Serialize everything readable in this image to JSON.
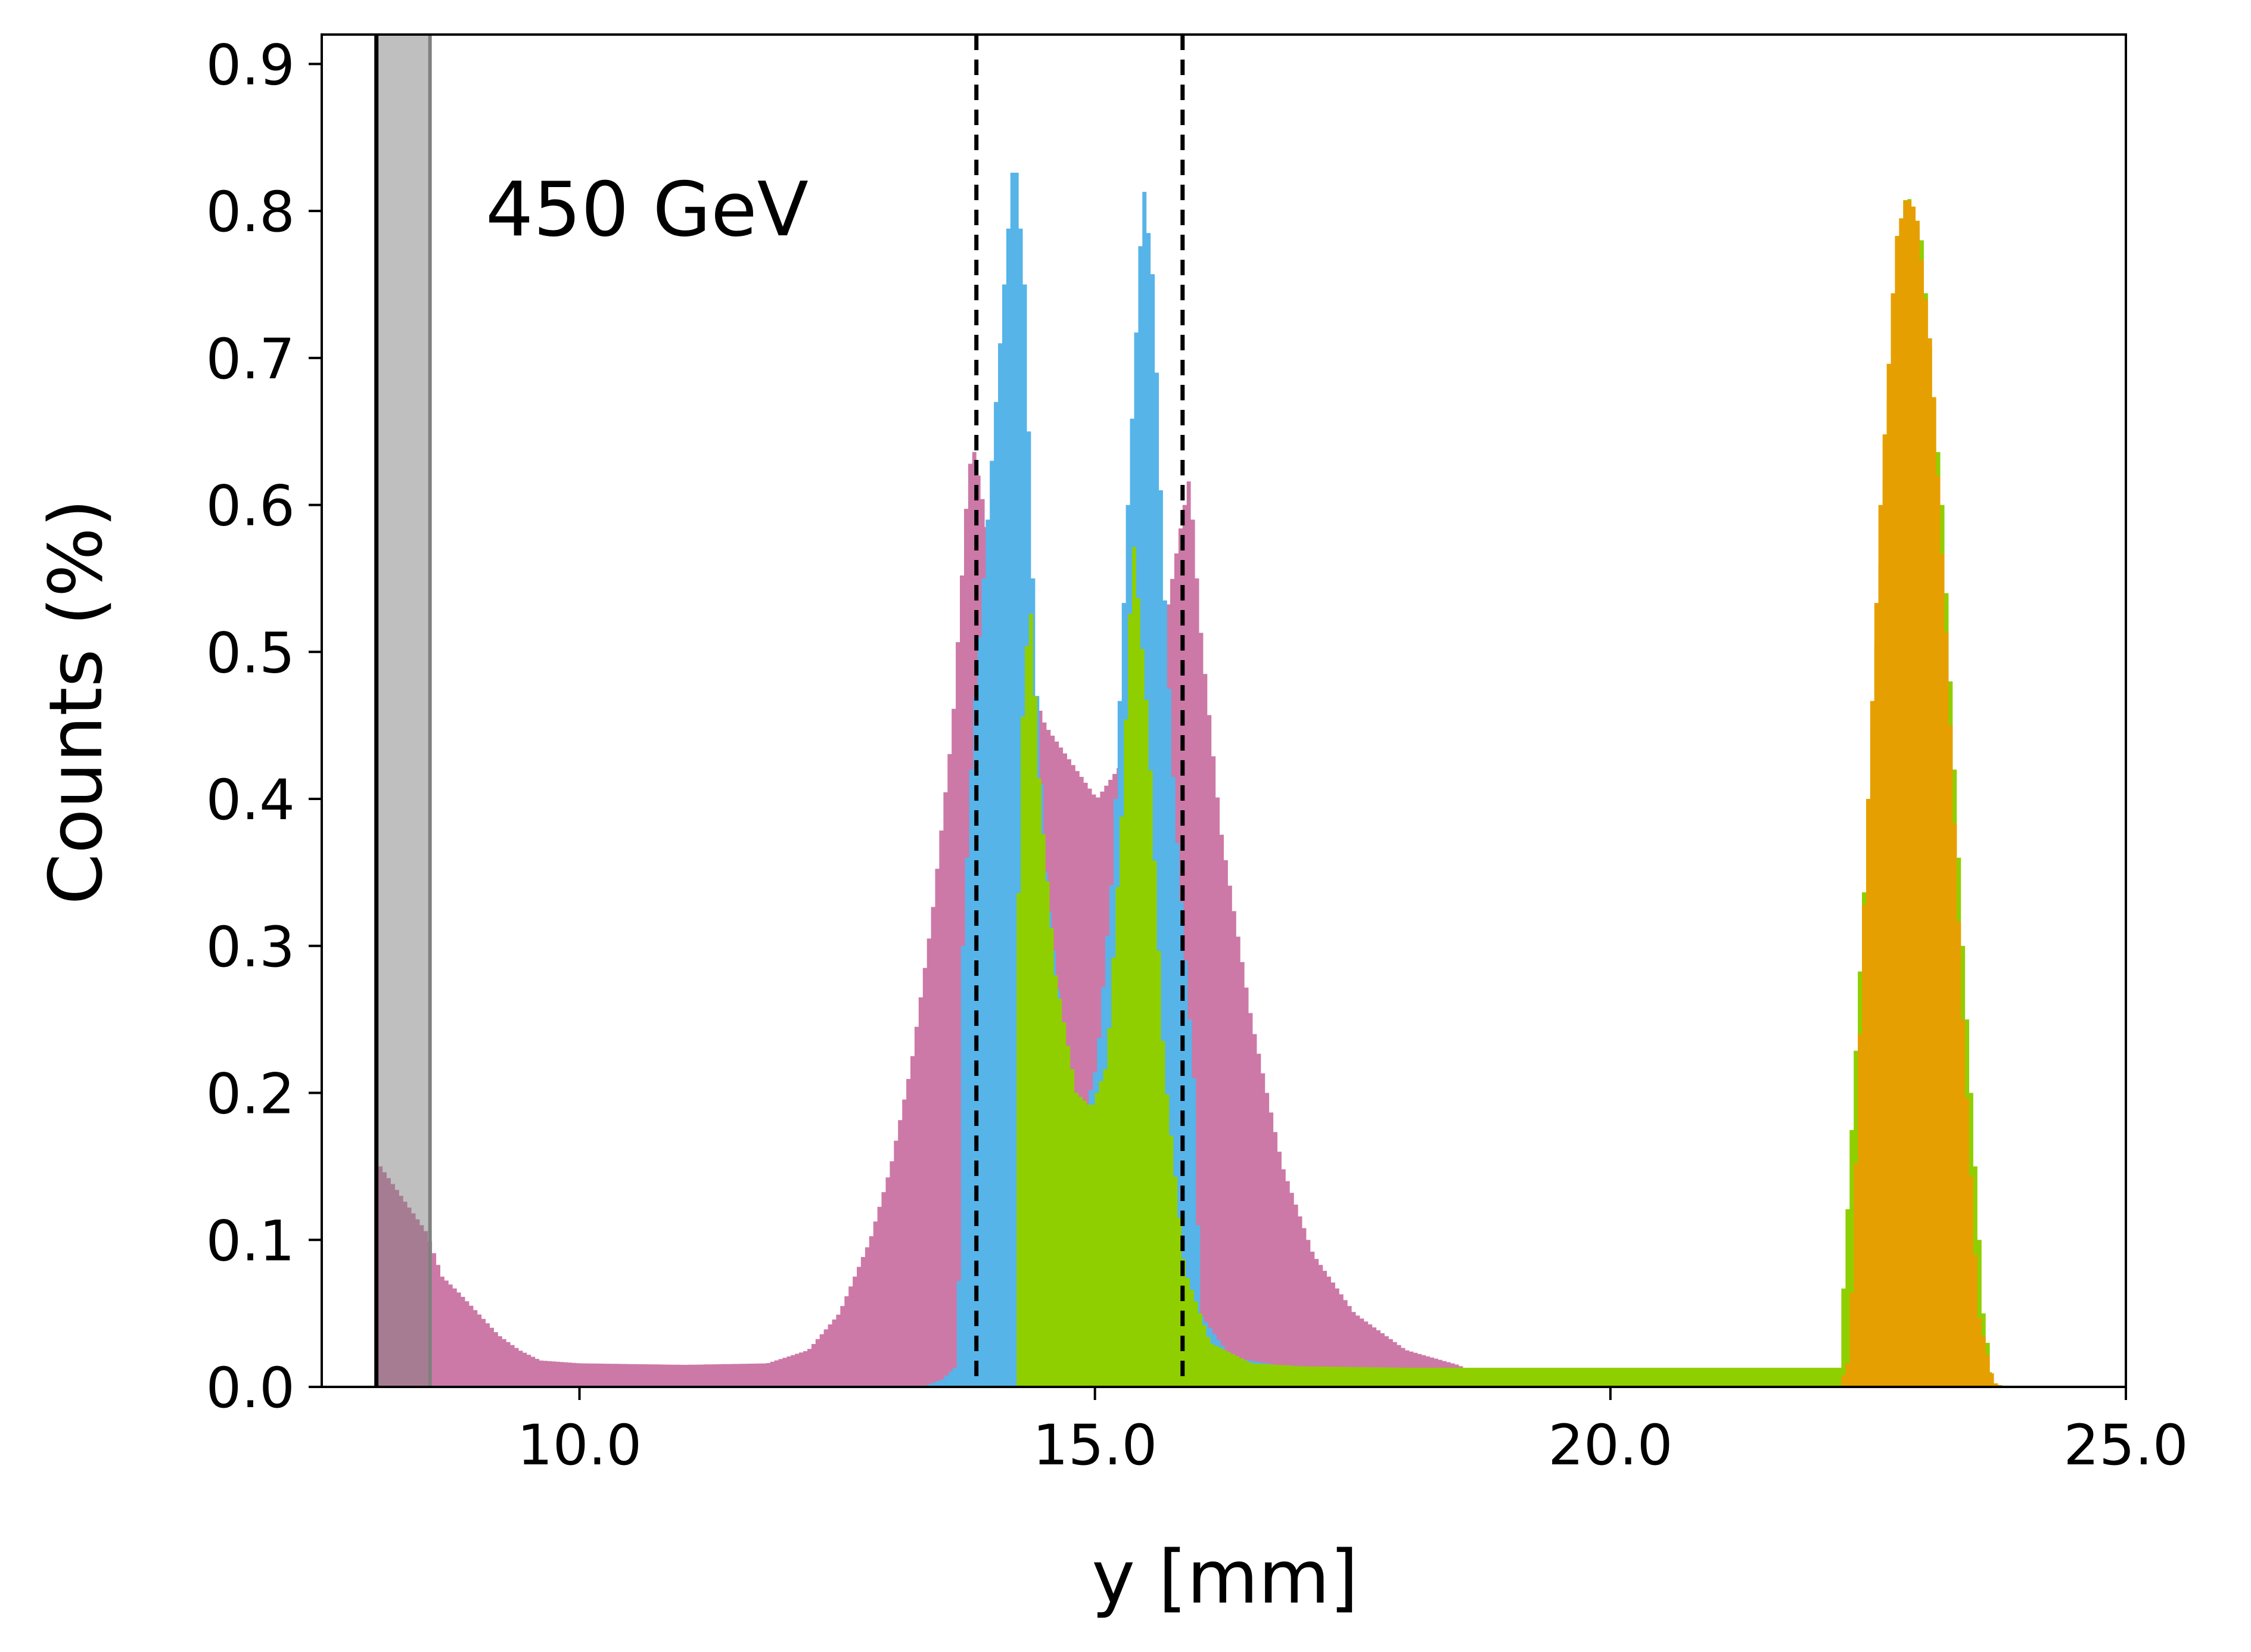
{
  "chart_data": {
    "type": "histogram",
    "annotation": "450 GeV",
    "xlabel": "y [mm]",
    "ylabel": "Counts (%)",
    "xlim": [
      7.5,
      25.0
    ],
    "ylim": [
      0.0,
      0.92
    ],
    "xticks": [
      10.0,
      15.0,
      20.0,
      25.0
    ],
    "xtick_labels": [
      "10.0",
      "15.0",
      "20.0",
      "25.0"
    ],
    "yticks": [
      0.0,
      0.1,
      0.2,
      0.3,
      0.4,
      0.5,
      0.6,
      0.7,
      0.8,
      0.9
    ],
    "ytick_labels": [
      "0.0",
      "0.1",
      "0.2",
      "0.3",
      "0.4",
      "0.5",
      "0.6",
      "0.7",
      "0.8",
      "0.9"
    ],
    "grid": false,
    "legend": "none",
    "series": [
      {
        "color": "#cc79a7",
        "points": [
          [
            8.05,
            0.15
          ],
          [
            8.2,
            0.135
          ],
          [
            8.35,
            0.12
          ],
          [
            8.5,
            0.105
          ],
          [
            8.65,
            0.075
          ],
          [
            8.8,
            0.065
          ],
          [
            9.0,
            0.05
          ],
          [
            9.2,
            0.035
          ],
          [
            9.4,
            0.025
          ],
          [
            9.6,
            0.018
          ],
          [
            10.0,
            0.016
          ],
          [
            11.0,
            0.015
          ],
          [
            11.8,
            0.016
          ],
          [
            12.2,
            0.025
          ],
          [
            12.5,
            0.05
          ],
          [
            12.8,
            0.1
          ],
          [
            13.0,
            0.15
          ],
          [
            13.2,
            0.22
          ],
          [
            13.4,
            0.32
          ],
          [
            13.6,
            0.45
          ],
          [
            13.75,
            0.62
          ],
          [
            13.8,
            0.64
          ],
          [
            13.9,
            0.6
          ],
          [
            14.0,
            0.55
          ],
          [
            14.5,
            0.45
          ],
          [
            15.0,
            0.4
          ],
          [
            15.5,
            0.45
          ],
          [
            15.8,
            0.58
          ],
          [
            15.9,
            0.62
          ],
          [
            16.0,
            0.52
          ],
          [
            16.2,
            0.38
          ],
          [
            16.5,
            0.25
          ],
          [
            16.8,
            0.15
          ],
          [
            17.1,
            0.09
          ],
          [
            17.5,
            0.05
          ],
          [
            18.0,
            0.025
          ],
          [
            18.5,
            0.015
          ],
          [
            19.0,
            0.0
          ]
        ]
      },
      {
        "color": "#56b4e9",
        "points": [
          [
            13.3,
            0.0
          ],
          [
            13.5,
            0.005
          ],
          [
            13.65,
            0.015
          ],
          [
            13.7,
            0.3
          ],
          [
            13.8,
            0.45
          ],
          [
            13.95,
            0.6
          ],
          [
            14.1,
            0.75
          ],
          [
            14.2,
            0.845
          ],
          [
            14.3,
            0.75
          ],
          [
            14.4,
            0.5
          ],
          [
            14.5,
            0.35
          ],
          [
            14.65,
            0.25
          ],
          [
            14.8,
            0.19
          ],
          [
            14.9,
            0.19
          ],
          [
            15.0,
            0.22
          ],
          [
            15.15,
            0.35
          ],
          [
            15.3,
            0.6
          ],
          [
            15.45,
            0.82
          ],
          [
            15.55,
            0.75
          ],
          [
            15.65,
            0.55
          ],
          [
            15.75,
            0.4
          ],
          [
            15.85,
            0.3
          ],
          [
            15.95,
            0.2
          ],
          [
            16.0,
            0.05
          ],
          [
            16.3,
            0.02
          ],
          [
            17.0,
            0.012
          ],
          [
            18.0,
            0.0
          ]
        ]
      },
      {
        "color": "#8fcf00",
        "points": [
          [
            14.2,
            0.0
          ],
          [
            14.25,
            0.42
          ],
          [
            14.35,
            0.54
          ],
          [
            14.45,
            0.4
          ],
          [
            14.6,
            0.28
          ],
          [
            14.8,
            0.2
          ],
          [
            14.95,
            0.19
          ],
          [
            15.1,
            0.22
          ],
          [
            15.25,
            0.4
          ],
          [
            15.35,
            0.58
          ],
          [
            15.5,
            0.45
          ],
          [
            15.65,
            0.22
          ],
          [
            15.85,
            0.08
          ],
          [
            16.1,
            0.03
          ],
          [
            16.5,
            0.016
          ],
          [
            17.0,
            0.014
          ],
          [
            18.0,
            0.013
          ],
          [
            20.0,
            0.013
          ],
          [
            22.2,
            0.013
          ],
          [
            22.45,
            0.35
          ],
          [
            22.7,
            0.7
          ],
          [
            22.85,
            0.815
          ],
          [
            23.0,
            0.78
          ],
          [
            23.2,
            0.6
          ],
          [
            23.4,
            0.3
          ],
          [
            23.6,
            0.05
          ],
          [
            23.7,
            0.0
          ]
        ]
      },
      {
        "color": "#e69f00",
        "points": [
          [
            22.2,
            0.0
          ],
          [
            22.3,
            0.02
          ],
          [
            22.45,
            0.35
          ],
          [
            22.6,
            0.6
          ],
          [
            22.75,
            0.78
          ],
          [
            22.85,
            0.81
          ],
          [
            22.95,
            0.8
          ],
          [
            23.1,
            0.7
          ],
          [
            23.25,
            0.5
          ],
          [
            23.4,
            0.25
          ],
          [
            23.55,
            0.05
          ],
          [
            23.7,
            0.003
          ],
          [
            23.8,
            0.0
          ]
        ]
      }
    ],
    "vertical_lines": [
      {
        "x": 8.03,
        "style": "solid",
        "color": "#000000"
      },
      {
        "x": 13.85,
        "style": "dashed",
        "color": "#000000"
      },
      {
        "x": 15.85,
        "style": "dashed",
        "color": "#000000"
      }
    ],
    "shaded_band": {
      "x0": 8.03,
      "x1": 8.55,
      "color": "#808080"
    }
  }
}
